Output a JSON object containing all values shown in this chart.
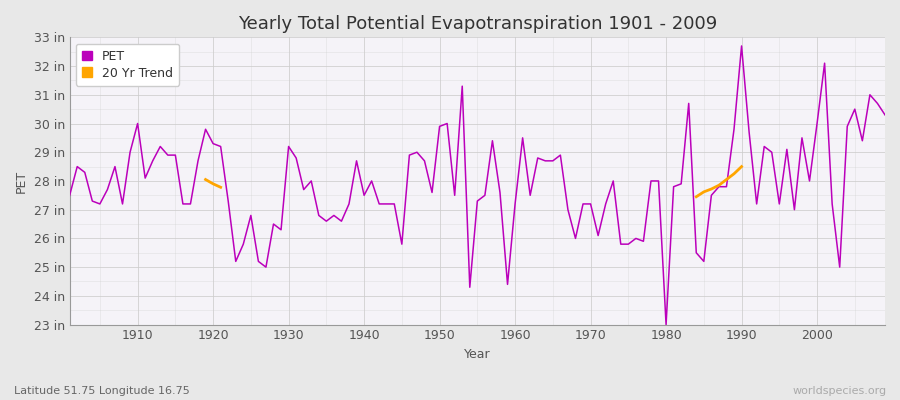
{
  "title": "Yearly Total Potential Evapotranspiration 1901 - 2009",
  "xlabel": "Year",
  "ylabel": "PET",
  "pet_color": "#BB00BB",
  "trend_color": "#FFA500",
  "bg_color": "#E8E8E8",
  "plot_bg_color": "#F5F3F8",
  "grid_color": "#CCCCCC",
  "years": [
    1901,
    1902,
    1903,
    1904,
    1905,
    1906,
    1907,
    1908,
    1909,
    1910,
    1911,
    1912,
    1913,
    1914,
    1915,
    1916,
    1917,
    1918,
    1919,
    1920,
    1921,
    1922,
    1923,
    1924,
    1925,
    1926,
    1927,
    1928,
    1929,
    1930,
    1931,
    1932,
    1933,
    1934,
    1935,
    1936,
    1937,
    1938,
    1939,
    1940,
    1941,
    1942,
    1943,
    1944,
    1945,
    1946,
    1947,
    1948,
    1949,
    1950,
    1951,
    1952,
    1953,
    1954,
    1955,
    1956,
    1957,
    1958,
    1959,
    1960,
    1961,
    1962,
    1963,
    1964,
    1965,
    1966,
    1967,
    1968,
    1969,
    1970,
    1971,
    1972,
    1973,
    1974,
    1975,
    1976,
    1977,
    1978,
    1979,
    1980,
    1981,
    1982,
    1983,
    1984,
    1985,
    1986,
    1987,
    1988,
    1989,
    1990,
    1991,
    1992,
    1993,
    1994,
    1995,
    1996,
    1997,
    1998,
    1999,
    2000,
    2001,
    2002,
    2003,
    2004,
    2005,
    2006,
    2007,
    2008,
    2009
  ],
  "pet_values": [
    27.5,
    28.5,
    28.3,
    27.3,
    27.2,
    27.7,
    28.5,
    27.2,
    29.0,
    30.0,
    28.1,
    28.7,
    29.2,
    28.9,
    28.9,
    27.2,
    27.2,
    28.7,
    29.8,
    29.3,
    29.2,
    27.3,
    25.2,
    25.8,
    26.8,
    25.2,
    25.0,
    26.5,
    26.3,
    29.2,
    28.8,
    27.7,
    28.0,
    26.8,
    26.6,
    26.8,
    26.6,
    27.2,
    28.7,
    27.5,
    28.0,
    27.2,
    27.2,
    27.2,
    25.8,
    28.9,
    29.0,
    28.7,
    27.6,
    29.9,
    30.0,
    27.5,
    31.3,
    24.3,
    27.3,
    27.5,
    29.4,
    27.6,
    24.4,
    27.2,
    29.5,
    27.5,
    28.8,
    28.7,
    28.7,
    28.9,
    27.0,
    26.0,
    27.2,
    27.2,
    26.1,
    27.2,
    28.0,
    25.8,
    25.8,
    26.0,
    25.9,
    28.0,
    28.0,
    23.0,
    27.8,
    27.9,
    30.7,
    25.5,
    25.2,
    27.5,
    27.8,
    27.8,
    29.8,
    32.7,
    29.7,
    27.2,
    29.2,
    29.0,
    27.2,
    29.1,
    27.0,
    29.5,
    28.0,
    30.0,
    32.1,
    27.2,
    25.0,
    29.9,
    30.5,
    29.4,
    31.0,
    30.7,
    30.3
  ],
  "trend_segment1_years": [
    1919,
    1920,
    1921
  ],
  "trend_segment1_values": [
    28.05,
    27.9,
    27.78
  ],
  "trend_segment2_years": [
    1984,
    1985,
    1986,
    1987,
    1988,
    1989,
    1990
  ],
  "trend_segment2_values": [
    27.45,
    27.62,
    27.72,
    27.85,
    28.05,
    28.25,
    28.5
  ],
  "ylim": [
    23,
    33
  ],
  "yticks": [
    23,
    24,
    25,
    26,
    27,
    28,
    29,
    30,
    31,
    32,
    33
  ],
  "ytick_labels": [
    "23 in",
    "24 in",
    "25 in",
    "26 in",
    "27 in",
    "28 in",
    "29 in",
    "30 in",
    "31 in",
    "32 in",
    "33 in"
  ],
  "xticks": [
    1910,
    1920,
    1930,
    1940,
    1950,
    1960,
    1970,
    1980,
    1990,
    2000
  ],
  "xlim": [
    1901,
    2009
  ],
  "title_fontsize": 13,
  "label_fontsize": 9,
  "tick_fontsize": 9,
  "legend_fontsize": 9,
  "watermark": "worldspecies.org",
  "bottom_left": "Latitude 51.75 Longitude 16.75"
}
